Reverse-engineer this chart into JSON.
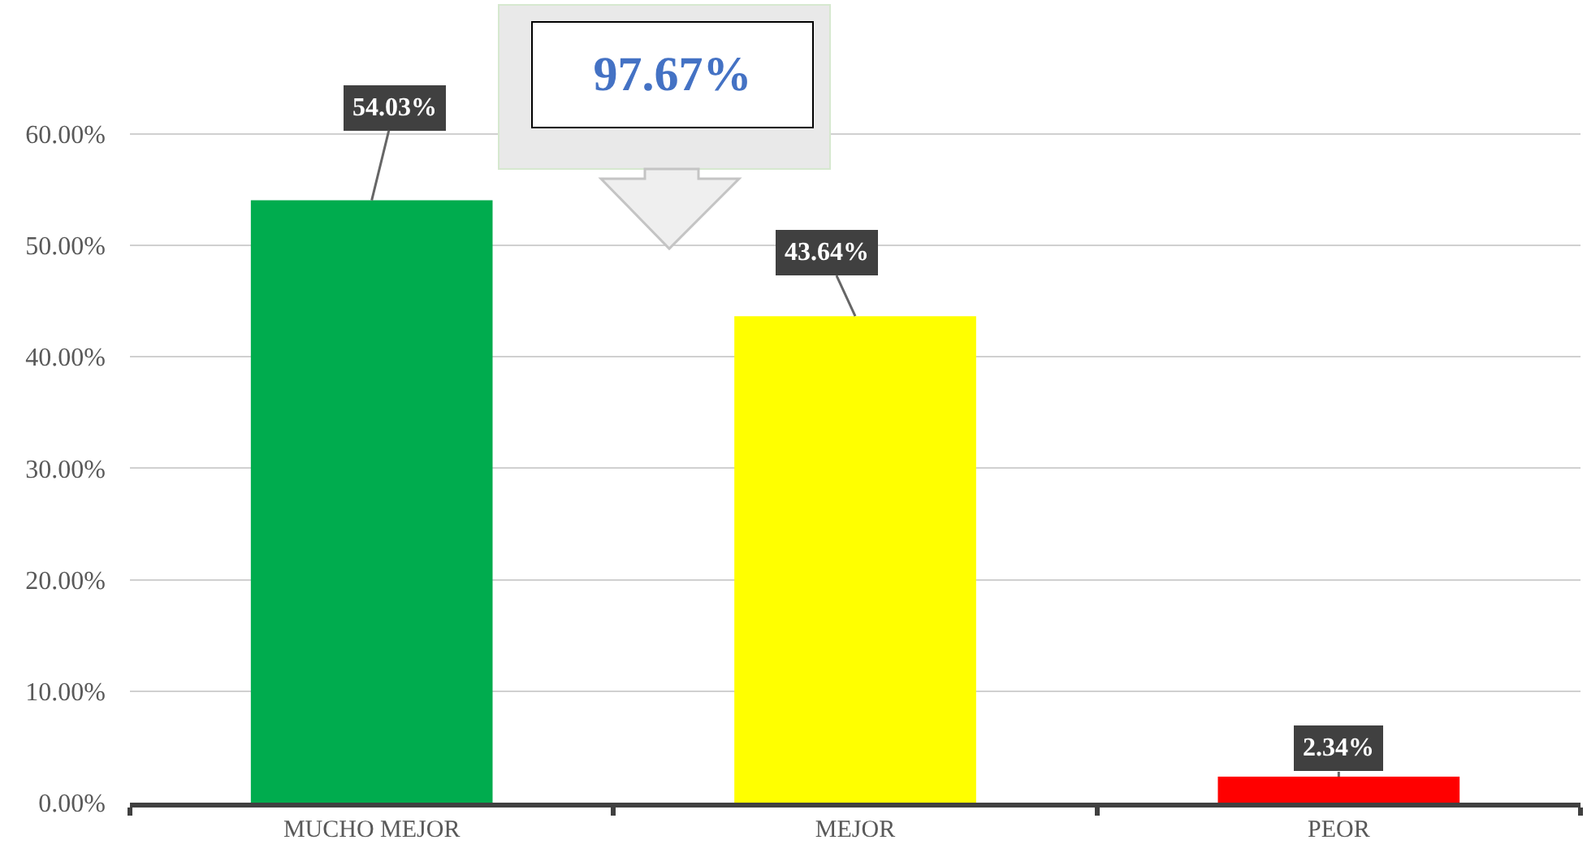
{
  "chart_data": {
    "type": "bar",
    "categories": [
      "MUCHO MEJOR",
      "MEJOR",
      "PEOR"
    ],
    "values": [
      54.03,
      43.64,
      2.34
    ],
    "colors": [
      "#00ac4e",
      "#ffff00",
      "#ff0000"
    ],
    "value_labels": [
      "54.03%",
      "43.64%",
      "2.34%"
    ],
    "ylim": [
      0,
      72
    ],
    "yticks": [
      {
        "value": 0,
        "label": "0.00%"
      },
      {
        "value": 10,
        "label": "10.00%"
      },
      {
        "value": 20,
        "label": "20.00%"
      },
      {
        "value": 30,
        "label": "30.00%"
      },
      {
        "value": 40,
        "label": "40.00%"
      },
      {
        "value": 50,
        "label": "50.00%"
      },
      {
        "value": 60,
        "label": "60.00%"
      }
    ],
    "grid": "y",
    "annotations": [
      "97.67%"
    ]
  }
}
